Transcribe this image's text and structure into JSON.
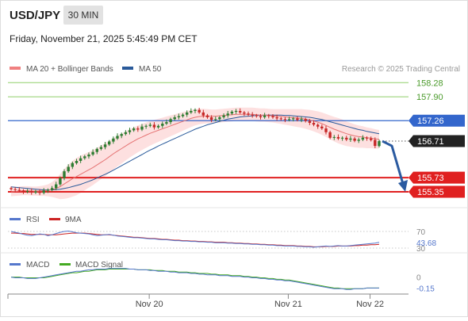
{
  "header": {
    "symbol": "USD/JPY",
    "interval": "30 MIN",
    "datetime": "Friday, November 21, 2025 5:45:49 PM CET"
  },
  "legend": {
    "items": [
      {
        "label": "MA 20 + Bollinger Bands",
        "color": "#f08080"
      },
      {
        "label": "MA 50",
        "color": "#2a5a9a"
      }
    ],
    "credit": "Research © 2025 Trading Central"
  },
  "colors": {
    "bull": "#2e7d32",
    "bear": "#c62828",
    "ma20": "#e57373",
    "ma50": "#2a5a9a",
    "band_fill": "#fde0e0",
    "resistance": "#8fcf6a",
    "pivot": "#3366cc",
    "support": "#e02020",
    "current": "#222222",
    "arrow": "#2a5aa0",
    "rsi": "#5577cc",
    "rsi_ma": "#cc2222",
    "macd": "#5577cc",
    "macd_signal": "#44aa22"
  },
  "chart_data": [
    {
      "type": "candlestick",
      "title": "USD/JPY",
      "interval": "30 MIN",
      "ylim": [
        155.2,
        158.35
      ],
      "x_ticks": [
        "Nov 20",
        "Nov 21",
        "Nov 22"
      ],
      "levels": [
        {
          "label": "158.28",
          "value": 158.28,
          "kind": "resistance"
        },
        {
          "label": "157.90",
          "value": 157.9,
          "kind": "resistance"
        },
        {
          "label": "157.26",
          "value": 157.26,
          "kind": "pivot"
        },
        {
          "label": "156.71",
          "value": 156.71,
          "kind": "current"
        },
        {
          "label": "155.73",
          "value": 155.73,
          "kind": "support"
        },
        {
          "label": "155.35",
          "value": 155.35,
          "kind": "support"
        }
      ],
      "close": [
        155.42,
        155.4,
        155.38,
        155.35,
        155.37,
        155.33,
        155.36,
        155.32,
        155.38,
        155.4,
        155.45,
        155.55,
        155.72,
        155.9,
        156.02,
        156.12,
        156.18,
        156.25,
        156.3,
        156.35,
        156.42,
        156.5,
        156.55,
        156.62,
        156.7,
        156.78,
        156.85,
        156.9,
        156.95,
        157.0,
        157.05,
        157.02,
        157.1,
        157.12,
        157.15,
        157.08,
        157.12,
        157.18,
        157.22,
        157.3,
        157.35,
        157.38,
        157.42,
        157.48,
        157.52,
        157.55,
        157.48,
        157.4,
        157.35,
        157.28,
        157.3,
        157.35,
        157.4,
        157.45,
        157.5,
        157.52,
        157.48,
        157.45,
        157.42,
        157.4,
        157.38,
        157.35,
        157.4,
        157.38,
        157.35,
        157.32,
        157.3,
        157.28,
        157.3,
        157.32,
        157.28,
        157.3,
        157.25,
        157.2,
        157.15,
        157.1,
        157.05,
        156.95,
        156.8,
        156.82,
        156.78,
        156.8,
        156.75,
        156.78,
        156.72,
        156.75,
        156.8,
        156.78,
        156.74,
        156.58,
        156.71
      ],
      "ma20": [
        155.35,
        155.36,
        155.37,
        155.38,
        155.38,
        155.37,
        155.37,
        155.37,
        155.38,
        155.39,
        155.41,
        155.44,
        155.49,
        155.56,
        155.63,
        155.7,
        155.76,
        155.82,
        155.88,
        155.94,
        156.0,
        156.07,
        156.14,
        156.21,
        156.29,
        156.37,
        156.44,
        156.51,
        156.58,
        156.65,
        156.71,
        156.77,
        156.82,
        156.87,
        156.92,
        156.96,
        157.0,
        157.04,
        157.08,
        157.12,
        157.16,
        157.2,
        157.24,
        157.28,
        157.32,
        157.35,
        157.37,
        157.38,
        157.38,
        157.38,
        157.38,
        157.39,
        157.4,
        157.41,
        157.42,
        157.43,
        157.43,
        157.43,
        157.43,
        157.43,
        157.42,
        157.41,
        157.41,
        157.4,
        157.39,
        157.38,
        157.37,
        157.36,
        157.35,
        157.34,
        157.33,
        157.32,
        157.3,
        157.28,
        157.25,
        157.22,
        157.18,
        157.13,
        157.08,
        157.03,
        156.99,
        156.95,
        156.91,
        156.88,
        156.85,
        156.83,
        156.82,
        156.8,
        156.79,
        156.77,
        156.76
      ],
      "ma50": [
        155.48,
        155.47,
        155.46,
        155.45,
        155.44,
        155.43,
        155.42,
        155.41,
        155.4,
        155.4,
        155.4,
        155.41,
        155.42,
        155.44,
        155.46,
        155.49,
        155.52,
        155.55,
        155.59,
        155.63,
        155.67,
        155.72,
        155.77,
        155.82,
        155.87,
        155.93,
        155.99,
        156.05,
        156.11,
        156.17,
        156.23,
        156.29,
        156.35,
        156.41,
        156.47,
        156.52,
        156.58,
        156.63,
        156.68,
        156.73,
        156.78,
        156.83,
        156.88,
        156.93,
        156.98,
        157.03,
        157.07,
        157.11,
        157.15,
        157.18,
        157.21,
        157.24,
        157.27,
        157.3,
        157.32,
        157.34,
        157.36,
        157.37,
        157.38,
        157.39,
        157.4,
        157.4,
        157.41,
        157.41,
        157.41,
        157.41,
        157.41,
        157.4,
        157.4,
        157.39,
        157.38,
        157.37,
        157.36,
        157.35,
        157.33,
        157.31,
        157.29,
        157.26,
        157.23,
        157.2,
        157.17,
        157.14,
        157.11,
        157.08,
        157.05,
        157.02,
        157.0,
        156.97,
        156.95,
        156.93,
        156.91
      ],
      "band_width": [
        0.12,
        0.12,
        0.12,
        0.12,
        0.12,
        0.12,
        0.12,
        0.13,
        0.14,
        0.16,
        0.2,
        0.26,
        0.34,
        0.4,
        0.45,
        0.48,
        0.5,
        0.5,
        0.49,
        0.48,
        0.47,
        0.46,
        0.45,
        0.44,
        0.43,
        0.42,
        0.41,
        0.4,
        0.39,
        0.38,
        0.37,
        0.36,
        0.35,
        0.34,
        0.33,
        0.32,
        0.31,
        0.3,
        0.29,
        0.28,
        0.27,
        0.26,
        0.25,
        0.24,
        0.23,
        0.22,
        0.21,
        0.2,
        0.19,
        0.18,
        0.18,
        0.18,
        0.18,
        0.18,
        0.18,
        0.18,
        0.18,
        0.18,
        0.18,
        0.18,
        0.18,
        0.18,
        0.18,
        0.18,
        0.18,
        0.19,
        0.2,
        0.21,
        0.22,
        0.23,
        0.24,
        0.25,
        0.26,
        0.27,
        0.28,
        0.29,
        0.3,
        0.31,
        0.32,
        0.33,
        0.34,
        0.34,
        0.33,
        0.32,
        0.31,
        0.3,
        0.29,
        0.28,
        0.27,
        0.26,
        0.25
      ]
    },
    {
      "type": "line",
      "title": "RSI",
      "series": [
        {
          "name": "RSI"
        },
        {
          "name": "9MA"
        }
      ],
      "ylim": [
        30,
        70
      ],
      "y_ticks": [
        "70",
        "30"
      ],
      "current_label": "43.68",
      "current_value": 43.68,
      "rsi": [
        70,
        68,
        66,
        63,
        61,
        60,
        62,
        64,
        63,
        60,
        62,
        65,
        68,
        70,
        71,
        69,
        67,
        66,
        65,
        64,
        62,
        60,
        61,
        62,
        63,
        61,
        59,
        58,
        57,
        56,
        55,
        55,
        54,
        53,
        52,
        52,
        51,
        50,
        50,
        49,
        48,
        48,
        47,
        47,
        46,
        46,
        45,
        45,
        44,
        44,
        43,
        43,
        43,
        42,
        42,
        41,
        41,
        40,
        40,
        39,
        39,
        38,
        38,
        37,
        37,
        36,
        36,
        35,
        35,
        35,
        34,
        34,
        33,
        33,
        32,
        33,
        34,
        35,
        34,
        35,
        36,
        35,
        35,
        36,
        37,
        38,
        39,
        40,
        41,
        42,
        43.68
      ],
      "rsi_ma": [
        66,
        66,
        65,
        65,
        64,
        63,
        63,
        63,
        63,
        62,
        62,
        62,
        63,
        64,
        65,
        66,
        66,
        66,
        66,
        65,
        64,
        63,
        62,
        62,
        62,
        61,
        60,
        59,
        58,
        57,
        56,
        56,
        55,
        54,
        53,
        53,
        52,
        51,
        51,
        50,
        49,
        49,
        48,
        48,
        47,
        47,
        46,
        46,
        45,
        45,
        44,
        44,
        44,
        43,
        43,
        42,
        42,
        41,
        41,
        40,
        40,
        39,
        39,
        38,
        38,
        37,
        37,
        36,
        36,
        36,
        35,
        35,
        34,
        34,
        33,
        33,
        33,
        34,
        34,
        34,
        35,
        35,
        35,
        35,
        36,
        36,
        37,
        37,
        38,
        38,
        39
      ]
    },
    {
      "type": "line",
      "title": "MACD",
      "series": [
        {
          "name": "MACD"
        },
        {
          "name": "MACD Signal"
        }
      ],
      "ylim": [
        -0.2,
        0.05
      ],
      "y_ticks": [
        "0"
      ],
      "current_label": "-0.15",
      "current_value": -0.15,
      "macd": [
        0.0,
        -0.01,
        -0.01,
        -0.01,
        -0.02,
        -0.02,
        -0.02,
        -0.01,
        0.0,
        0.01,
        0.02,
        0.03,
        0.04,
        0.05,
        0.06,
        0.07,
        0.08,
        0.08,
        0.09,
        0.1,
        0.1,
        0.11,
        0.11,
        0.11,
        0.12,
        0.12,
        0.12,
        0.12,
        0.12,
        0.11,
        0.11,
        0.1,
        0.1,
        0.1,
        0.09,
        0.09,
        0.08,
        0.08,
        0.08,
        0.07,
        0.07,
        0.06,
        0.06,
        0.06,
        0.05,
        0.05,
        0.04,
        0.04,
        0.03,
        0.03,
        0.03,
        0.02,
        0.02,
        0.02,
        0.01,
        0.01,
        0.01,
        0.0,
        0.0,
        -0.01,
        -0.01,
        -0.02,
        -0.02,
        -0.03,
        -0.03,
        -0.04,
        -0.04,
        -0.05,
        -0.05,
        -0.06,
        -0.07,
        -0.08,
        -0.09,
        -0.1,
        -0.11,
        -0.12,
        -0.13,
        -0.14,
        -0.15,
        -0.16,
        -0.16,
        -0.16,
        -0.17,
        -0.17,
        -0.16,
        -0.16,
        -0.16,
        -0.15,
        -0.15,
        -0.15,
        -0.15
      ],
      "macd_signal": [
        0.0,
        0.0,
        0.0,
        -0.01,
        -0.01,
        -0.01,
        -0.01,
        -0.01,
        -0.01,
        0.0,
        0.01,
        0.02,
        0.03,
        0.04,
        0.05,
        0.06,
        0.06,
        0.07,
        0.08,
        0.08,
        0.09,
        0.1,
        0.1,
        0.1,
        0.11,
        0.11,
        0.11,
        0.11,
        0.11,
        0.11,
        0.11,
        0.1,
        0.1,
        0.1,
        0.1,
        0.09,
        0.09,
        0.09,
        0.08,
        0.08,
        0.08,
        0.07,
        0.07,
        0.07,
        0.06,
        0.06,
        0.05,
        0.05,
        0.05,
        0.04,
        0.04,
        0.03,
        0.03,
        0.03,
        0.02,
        0.02,
        0.02,
        0.01,
        0.01,
        0.0,
        0.0,
        -0.01,
        -0.01,
        -0.02,
        -0.02,
        -0.03,
        -0.03,
        -0.04,
        -0.04,
        -0.05,
        -0.06,
        -0.07,
        -0.08,
        -0.09,
        -0.1,
        -0.11,
        -0.12,
        -0.13,
        -0.14,
        -0.15,
        -0.15,
        -0.16,
        -0.16,
        -0.16,
        -0.16,
        -0.16,
        -0.16,
        -0.15,
        -0.15,
        -0.15,
        -0.15
      ]
    }
  ],
  "forecast": {
    "from": 156.71,
    "to": 155.35
  }
}
